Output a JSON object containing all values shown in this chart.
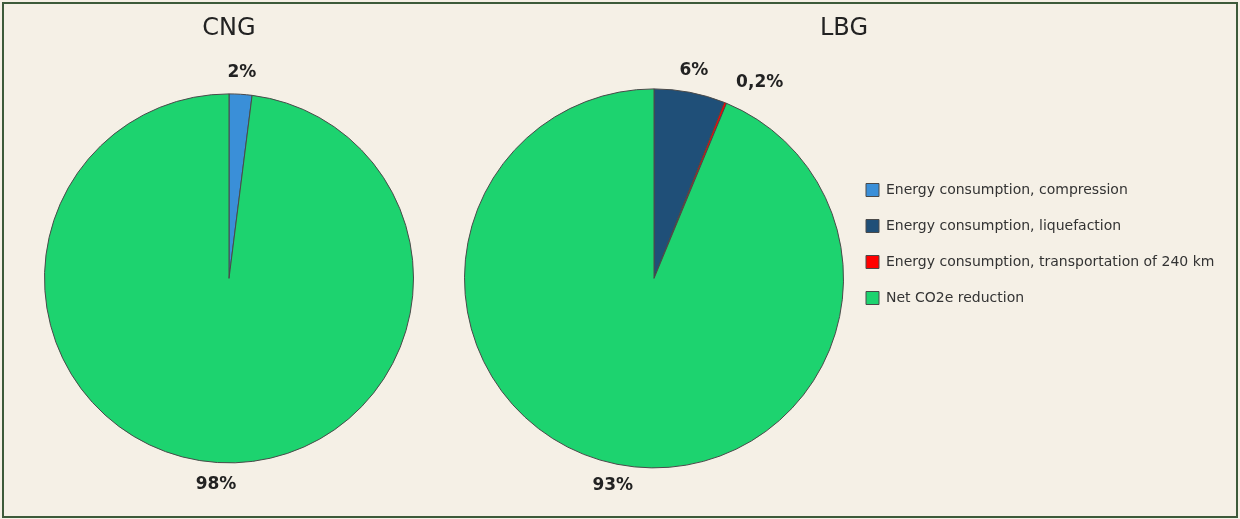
{
  "chart_data": [
    {
      "type": "pie",
      "title": "CNG",
      "categories": [
        null,
        null,
        null,
        null
      ],
      "values": [
        2,
        0,
        0,
        98
      ],
      "colors": [
        "#3a8fd8",
        "#1f4f78",
        "#ff0000",
        "#1dd36f"
      ],
      "value_labels": [
        "2%",
        null,
        null,
        "98%"
      ],
      "legend": false
    },
    {
      "type": "pie",
      "title": "LBG",
      "categories": [
        "Energy consumption, compression",
        "Energy consumption, liquefaction",
        "Energy consumption, transportation of 240 km",
        "Net CO2e reduction"
      ],
      "values": [
        0,
        6,
        0.2,
        93
      ],
      "colors": [
        "#3a8fd8",
        "#1f4f78",
        "#ff0000",
        "#1dd36f"
      ],
      "value_labels": [
        null,
        "6%",
        "0,2%",
        "93%"
      ],
      "legend": "right"
    }
  ]
}
